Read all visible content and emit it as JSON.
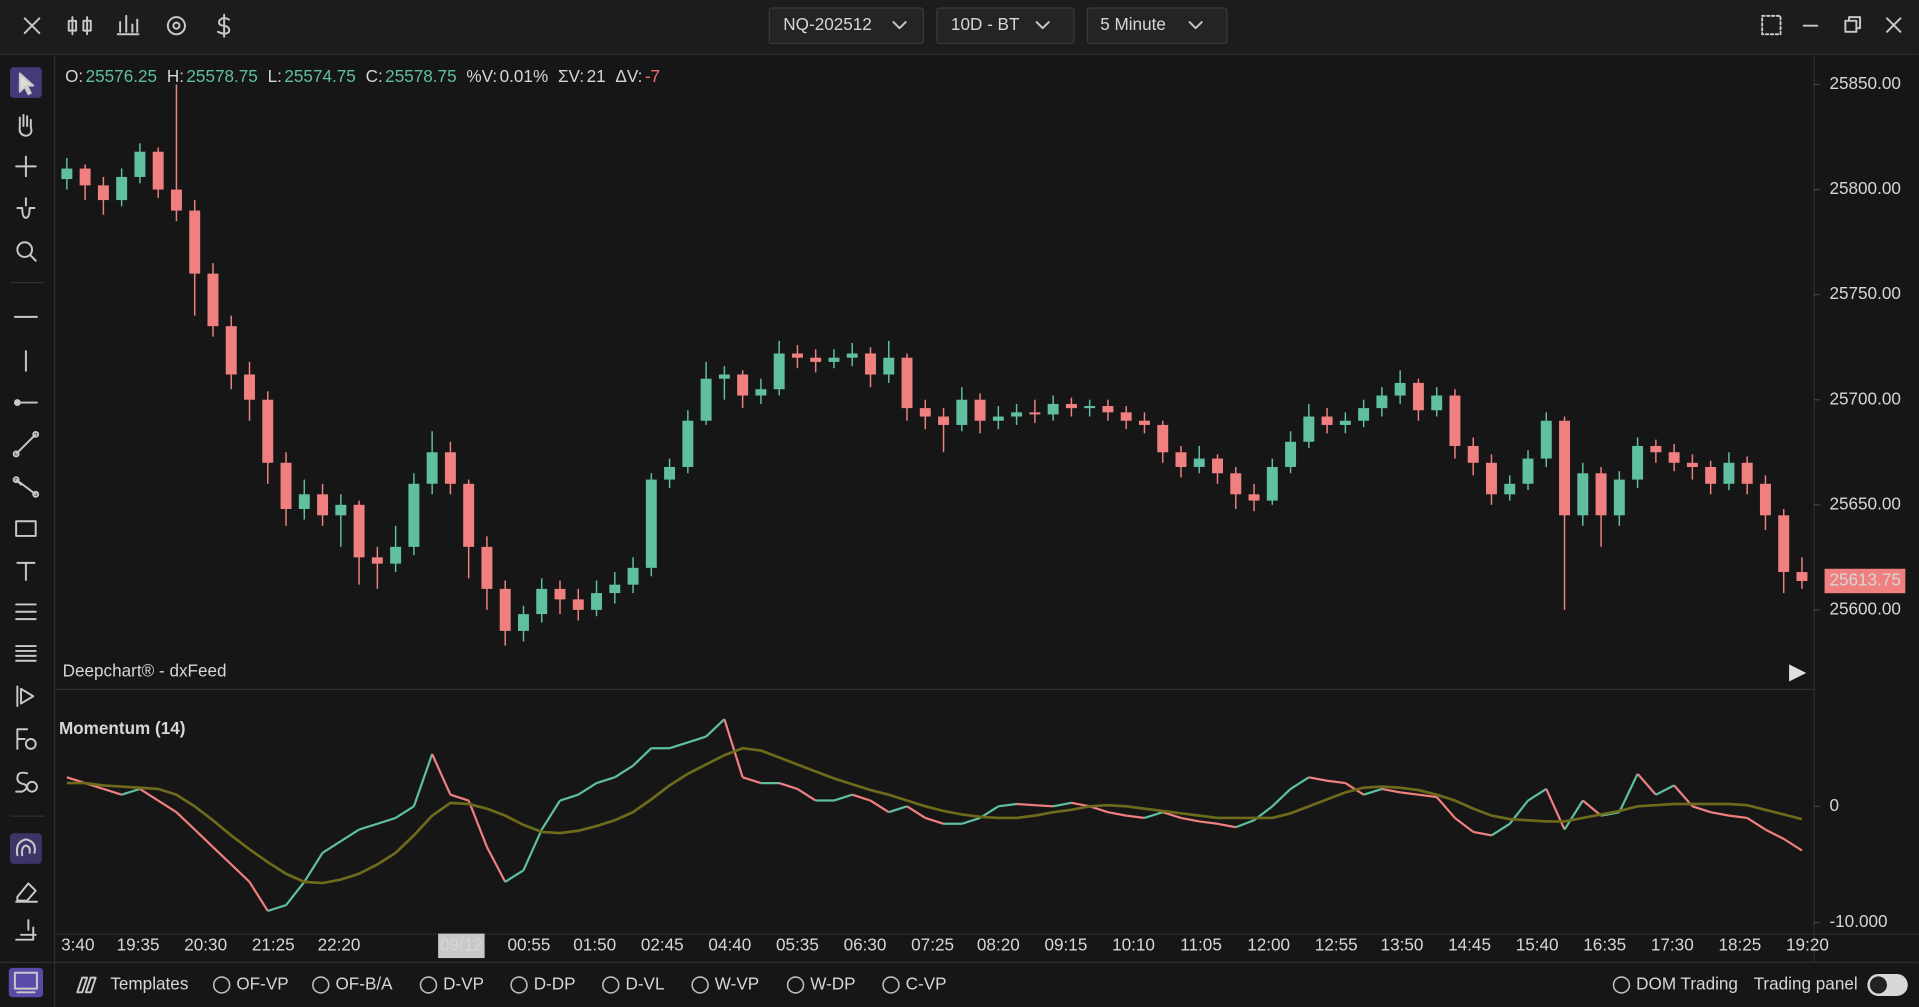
{
  "ui": {
    "symbol": "NQ-202512",
    "range": "10D - BT",
    "interval": "5 Minute",
    "info": [
      {
        "label": "O:",
        "value": "25576.25",
        "color": "#5fbf9f"
      },
      {
        "label": "H:",
        "value": "25578.75",
        "color": "#5fbf9f"
      },
      {
        "label": "L:",
        "value": "25574.75",
        "color": "#5fbf9f"
      },
      {
        "label": "C:",
        "value": "25578.75",
        "color": "#5fbf9f"
      },
      {
        "label": "%V:",
        "value": "0.01%",
        "color": "#d6d6d6"
      },
      {
        "label": "ΣV:",
        "value": "21",
        "color": "#d6d6d6"
      },
      {
        "label": "ΔV:",
        "value": "-7",
        "color": "#f07070"
      }
    ],
    "watermark": "Deepchart® - dxFeed",
    "templates": "Templates",
    "options": [
      "OF-VP",
      "OF-B/A",
      "D-VP",
      "D-DP",
      "D-VL",
      "W-VP",
      "W-DP",
      "C-VP"
    ],
    "dom_trading": "DOM Trading",
    "trading_panel": "Trading panel"
  },
  "chart_data": [
    {
      "type": "candlestick",
      "up_color": "#5fbf9f",
      "down_color": "#f08080",
      "xlim": [
        -0.5,
        95.5
      ],
      "ylim": [
        25563,
        25864
      ],
      "yticks": [
        {
          "value": 25600,
          "label": "25600.00"
        },
        {
          "value": 25650,
          "label": "25650.00"
        },
        {
          "value": 25700,
          "label": "25700.00"
        },
        {
          "value": 25750,
          "label": "25750.00"
        },
        {
          "value": 25800,
          "label": "25800.00"
        },
        {
          "value": 25850,
          "label": "25850.00"
        }
      ],
      "xticks": [
        {
          "value": 0.6,
          "label": "3:40"
        },
        {
          "value": 3.9,
          "label": "19:35"
        },
        {
          "value": 7.6,
          "label": "20:30"
        },
        {
          "value": 11.3,
          "label": "21:25"
        },
        {
          "value": 14.9,
          "label": "22:20"
        },
        {
          "value": 21.6,
          "label": "09/12"
        },
        {
          "value": 25.3,
          "label": "00:55"
        },
        {
          "value": 28.9,
          "label": "01:50"
        },
        {
          "value": 32.6,
          "label": "02:45"
        },
        {
          "value": 36.3,
          "label": "04:40"
        },
        {
          "value": 40.0,
          "label": "05:35"
        },
        {
          "value": 43.7,
          "label": "06:30"
        },
        {
          "value": 47.4,
          "label": "07:25"
        },
        {
          "value": 51.0,
          "label": "08:20"
        },
        {
          "value": 54.7,
          "label": "09:15"
        },
        {
          "value": 58.4,
          "label": "10:10"
        },
        {
          "value": 62.1,
          "label": "11:05"
        },
        {
          "value": 65.8,
          "label": "12:00"
        },
        {
          "value": 69.5,
          "label": "12:55"
        },
        {
          "value": 73.1,
          "label": "13:50"
        },
        {
          "value": 76.8,
          "label": "14:45"
        },
        {
          "value": 80.5,
          "label": "15:40"
        },
        {
          "value": 84.2,
          "label": "16:35"
        },
        {
          "value": 87.9,
          "label": "17:30"
        },
        {
          "value": 91.6,
          "label": "18:25"
        },
        {
          "value": 95.3,
          "label": "19:20"
        }
      ],
      "ohlc": [
        [
          25805,
          25815,
          25800,
          25810
        ],
        [
          25810,
          25812,
          25795,
          25802
        ],
        [
          25802,
          25806,
          25788,
          25795
        ],
        [
          25795,
          25810,
          25792,
          25806
        ],
        [
          25806,
          25822,
          25803,
          25818
        ],
        [
          25818,
          25820,
          25796,
          25800
        ],
        [
          25800,
          25850,
          25785,
          25790
        ],
        [
          25790,
          25795,
          25740,
          25760
        ],
        [
          25760,
          25765,
          25730,
          25735
        ],
        [
          25735,
          25740,
          25705,
          25712
        ],
        [
          25712,
          25718,
          25690,
          25700
        ],
        [
          25700,
          25704,
          25660,
          25670
        ],
        [
          25670,
          25675,
          25640,
          25648
        ],
        [
          25648,
          25662,
          25643,
          25655
        ],
        [
          25655,
          25660,
          25640,
          25645
        ],
        [
          25645,
          25655,
          25630,
          25650
        ],
        [
          25650,
          25652,
          25612,
          25625
        ],
        [
          25625,
          25630,
          25610,
          25622
        ],
        [
          25622,
          25640,
          25618,
          25630
        ],
        [
          25630,
          25665,
          25626,
          25660
        ],
        [
          25660,
          25685,
          25655,
          25675
        ],
        [
          25675,
          25680,
          25655,
          25660
        ],
        [
          25660,
          25662,
          25615,
          25630
        ],
        [
          25630,
          25635,
          25600,
          25610
        ],
        [
          25610,
          25614,
          25583,
          25590
        ],
        [
          25590,
          25602,
          25585,
          25598
        ],
        [
          25598,
          25615,
          25594,
          25610
        ],
        [
          25610,
          25614,
          25598,
          25605
        ],
        [
          25605,
          25610,
          25595,
          25600
        ],
        [
          25600,
          25614,
          25597,
          25608
        ],
        [
          25608,
          25618,
          25603,
          25612
        ],
        [
          25612,
          25625,
          25608,
          25620
        ],
        [
          25620,
          25665,
          25616,
          25662
        ],
        [
          25662,
          25672,
          25658,
          25668
        ],
        [
          25668,
          25695,
          25665,
          25690
        ],
        [
          25690,
          25718,
          25688,
          25710
        ],
        [
          25710,
          25716,
          25700,
          25712
        ],
        [
          25712,
          25714,
          25696,
          25702
        ],
        [
          25702,
          25710,
          25698,
          25705
        ],
        [
          25705,
          25728,
          25702,
          25722
        ],
        [
          25722,
          25726,
          25715,
          25720
        ],
        [
          25720,
          25724,
          25713,
          25718
        ],
        [
          25718,
          25724,
          25715,
          25720
        ],
        [
          25720,
          25727,
          25716,
          25722
        ],
        [
          25722,
          25725,
          25706,
          25712
        ],
        [
          25712,
          25728,
          25708,
          25720
        ],
        [
          25720,
          25722,
          25690,
          25696
        ],
        [
          25696,
          25700,
          25686,
          25692
        ],
        [
          25692,
          25696,
          25675,
          25688
        ],
        [
          25688,
          25706,
          25685,
          25700
        ],
        [
          25700,
          25703,
          25684,
          25690
        ],
        [
          25690,
          25697,
          25686,
          25692
        ],
        [
          25692,
          25698,
          25688,
          25694
        ],
        [
          25694,
          25700,
          25689,
          25693
        ],
        [
          25693,
          25702,
          25690,
          25698
        ],
        [
          25698,
          25701,
          25692,
          25696
        ],
        [
          25696,
          25700,
          25692,
          25697
        ],
        [
          25697,
          25700,
          25690,
          25694
        ],
        [
          25694,
          25697,
          25686,
          25690
        ],
        [
          25690,
          25694,
          25684,
          25688
        ],
        [
          25688,
          25690,
          25670,
          25675
        ],
        [
          25675,
          25678,
          25663,
          25668
        ],
        [
          25668,
          25678,
          25665,
          25672
        ],
        [
          25672,
          25674,
          25660,
          25665
        ],
        [
          25665,
          25668,
          25648,
          25655
        ],
        [
          25655,
          25660,
          25647,
          25652
        ],
        [
          25652,
          25672,
          25650,
          25668
        ],
        [
          25668,
          25685,
          25665,
          25680
        ],
        [
          25680,
          25698,
          25677,
          25692
        ],
        [
          25692,
          25696,
          25684,
          25688
        ],
        [
          25688,
          25694,
          25684,
          25690
        ],
        [
          25690,
          25700,
          25687,
          25696
        ],
        [
          25696,
          25706,
          25692,
          25702
        ],
        [
          25702,
          25714,
          25698,
          25708
        ],
        [
          25708,
          25710,
          25690,
          25695
        ],
        [
          25695,
          25706,
          25692,
          25702
        ],
        [
          25702,
          25705,
          25672,
          25678
        ],
        [
          25678,
          25682,
          25664,
          25670
        ],
        [
          25670,
          25674,
          25650,
          25655
        ],
        [
          25655,
          25664,
          25652,
          25660
        ],
        [
          25660,
          25676,
          25657,
          25672
        ],
        [
          25672,
          25694,
          25668,
          25690
        ],
        [
          25690,
          25692,
          25600,
          25645
        ],
        [
          25645,
          25670,
          25640,
          25665
        ],
        [
          25665,
          25668,
          25630,
          25645
        ],
        [
          25645,
          25666,
          25640,
          25662
        ],
        [
          25662,
          25682,
          25658,
          25678
        ],
        [
          25678,
          25681,
          25670,
          25675
        ],
        [
          25675,
          25679,
          25666,
          25670
        ],
        [
          25670,
          25674,
          25662,
          25668
        ],
        [
          25668,
          25671,
          25655,
          25660
        ],
        [
          25660,
          25675,
          25657,
          25670
        ],
        [
          25670,
          25673,
          25655,
          25660
        ],
        [
          25660,
          25664,
          25638,
          25645
        ],
        [
          25645,
          25648,
          25608,
          25618
        ],
        [
          25618,
          25625,
          25610,
          25613.75
        ]
      ]
    },
    {
      "type": "line",
      "title": "Momentum (14)",
      "ylim": [
        -11,
        9.5
      ],
      "yticks": [
        {
          "value": -10,
          "label": "-10.000"
        },
        0
      ],
      "series": [
        {
          "up_color": "#5fbf9f",
          "down_color": "#f08080",
          "values": [
            2.5,
            2,
            1.5,
            1,
            1.5,
            0.5,
            -0.5,
            -2,
            -3.5,
            -5,
            -6.5,
            -9,
            -8.5,
            -6.5,
            -4,
            -3,
            -2,
            -1.5,
            -1,
            0,
            4.5,
            1,
            0.5,
            -3.5,
            -6.5,
            -5.5,
            -2,
            0.5,
            1,
            2,
            2.5,
            3.5,
            5,
            5,
            5.5,
            6,
            7.5,
            2.5,
            2,
            2,
            1.5,
            0.5,
            0.5,
            1,
            0.5,
            -0.5,
            0,
            -1,
            -1.5,
            -1.5,
            -1,
            0,
            0.2,
            0.1,
            0,
            0.3,
            0,
            -0.5,
            -0.8,
            -1,
            -0.5,
            -1,
            -1.3,
            -1.5,
            -1.8,
            -1.2,
            0,
            1.5,
            2.5,
            2.2,
            2,
            1,
            1.5,
            1.2,
            1,
            0.8,
            -1,
            -2.2,
            -2.5,
            -1.5,
            0.5,
            1.5,
            -2,
            0.5,
            -0.8,
            -0.5,
            2.8,
            1,
            1.8,
            0,
            -0.5,
            -0.8,
            -1,
            -2,
            -2.8,
            -3.8
          ]
        },
        {
          "color": "#6e6a1c",
          "values": [
            2,
            2,
            1.8,
            1.7,
            1.6,
            1.5,
            1,
            0,
            -1.2,
            -2.5,
            -3.7,
            -4.8,
            -5.8,
            -6.5,
            -6.6,
            -6.3,
            -5.8,
            -5,
            -4,
            -2.5,
            -0.8,
            0.3,
            0.2,
            -0.2,
            -0.8,
            -1.6,
            -2.2,
            -2.3,
            -2.1,
            -1.7,
            -1.2,
            -0.5,
            0.6,
            1.8,
            2.8,
            3.6,
            4.4,
            5,
            4.8,
            4.2,
            3.6,
            3,
            2.4,
            1.9,
            1.4,
            1,
            0.5,
            0,
            -0.4,
            -0.7,
            -0.9,
            -1,
            -1,
            -0.8,
            -0.5,
            -0.3,
            0,
            0.1,
            0,
            -0.2,
            -0.4,
            -0.6,
            -0.8,
            -1,
            -1,
            -1,
            -1,
            -0.6,
            0,
            0.6,
            1.2,
            1.6,
            1.7,
            1.6,
            1.4,
            1,
            0.5,
            -0.2,
            -0.8,
            -1.1,
            -1.2,
            -1.3,
            -1.3,
            -1,
            -0.7,
            -0.4,
            0,
            0.1,
            0.2,
            0.2,
            0.2,
            0.2,
            0.1,
            -0.3,
            -0.7,
            -1.1
          ]
        }
      ]
    }
  ]
}
